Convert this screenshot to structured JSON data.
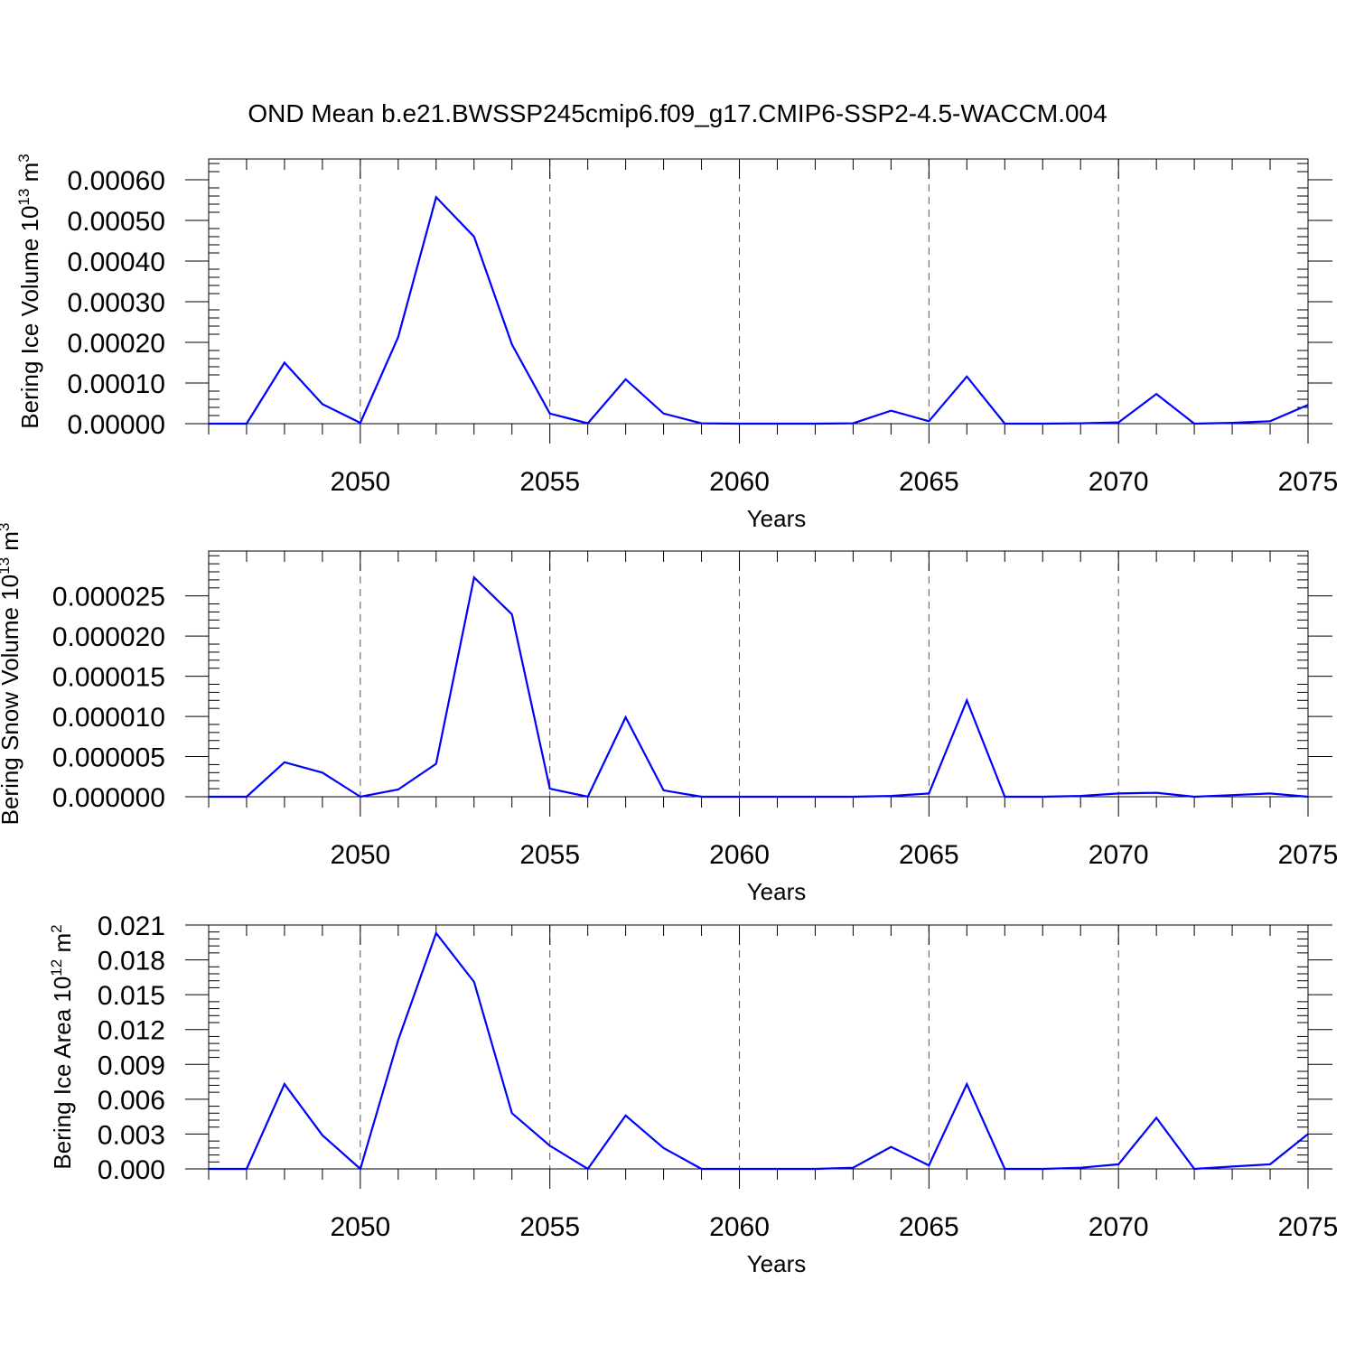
{
  "title": "OND Mean b.e21.BWSSP245cmip6.f09_g17.CMIP6-SSP2-4.5-WACCM.004",
  "colors": {
    "line": "#0000ff",
    "grid": "#555555"
  },
  "chart_data": [
    {
      "type": "line",
      "title": "OND Mean b.e21.BWSSP245cmip6.f09_g17.CMIP6-SSP2-4.5-WACCM.004",
      "xlabel": "Years",
      "ylabel_main": "Bering Ice Volume 10",
      "ylabel_exp": "13",
      "ylabel_unit": " m",
      "ylabel_unit_exp": "3",
      "xlim": [
        2046,
        2075
      ],
      "ylim": [
        0,
        0.0006
      ],
      "xticks": [
        2050,
        2055,
        2060,
        2065,
        2070,
        2075
      ],
      "xtick_labels": [
        "2050",
        "2055",
        "2060",
        "2065",
        "2070",
        "2075"
      ],
      "yticks": [
        0,
        0.0001,
        0.0002,
        0.0003,
        0.0004,
        0.0005,
        0.0006
      ],
      "ytick_labels": [
        "0.00000",
        "0.00010",
        "0.00020",
        "0.00030",
        "0.00040",
        "0.00050",
        "0.00060"
      ],
      "grid": "vertical dashed at major x ticks",
      "x": [
        2046,
        2047,
        2048,
        2049,
        2050,
        2051,
        2052,
        2053,
        2054,
        2055,
        2056,
        2057,
        2058,
        2059,
        2060,
        2061,
        2062,
        2063,
        2064,
        2065,
        2066,
        2067,
        2068,
        2069,
        2070,
        2071,
        2072,
        2073,
        2074,
        2075
      ],
      "y": [
        0,
        0,
        0.00015,
        4.8e-05,
        2e-06,
        0.000213,
        0.000557,
        0.00046,
        0.000195,
        2.5e-05,
        1e-06,
        0.000109,
        2.5e-05,
        1e-06,
        0,
        0,
        0,
        1e-06,
        3.2e-05,
        6e-06,
        0.000116,
        0,
        0,
        1e-06,
        3e-06,
        7.3e-05,
        0,
        2e-06,
        6e-06,
        4.6e-05
      ]
    },
    {
      "type": "line",
      "xlabel": "Years",
      "ylabel_main": "Bering Snow Volume 10",
      "ylabel_exp": "13",
      "ylabel_unit": " m",
      "ylabel_unit_exp": "3",
      "xlim": [
        2046,
        2075
      ],
      "ylim": [
        0,
        2.8e-05
      ],
      "xticks": [
        2050,
        2055,
        2060,
        2065,
        2070,
        2075
      ],
      "xtick_labels": [
        "2050",
        "2055",
        "2060",
        "2065",
        "2070",
        "2075"
      ],
      "yticks": [
        0,
        5e-06,
        1e-05,
        1.5e-05,
        2e-05,
        2.5e-05
      ],
      "ytick_labels": [
        "0.000000",
        "0.000005",
        "0.000010",
        "0.000015",
        "0.000020",
        "0.000025"
      ],
      "grid": "vertical dashed at major x ticks",
      "x": [
        2046,
        2047,
        2048,
        2049,
        2050,
        2051,
        2052,
        2053,
        2054,
        2055,
        2056,
        2057,
        2058,
        2059,
        2060,
        2061,
        2062,
        2063,
        2064,
        2065,
        2066,
        2067,
        2068,
        2069,
        2070,
        2071,
        2072,
        2073,
        2074,
        2075
      ],
      "y": [
        0,
        0,
        4.3e-06,
        3e-06,
        0,
        9e-07,
        4.1e-06,
        2.73e-05,
        2.27e-05,
        1e-06,
        0,
        9.9e-06,
        8e-07,
        0,
        0,
        0,
        0,
        0,
        1e-07,
        4e-07,
        1.2e-05,
        0,
        0,
        1e-07,
        4e-07,
        5e-07,
        0,
        2e-07,
        4e-07,
        0
      ]
    },
    {
      "type": "line",
      "xlabel": "Years",
      "ylabel_main": "Bering Ice Area 10",
      "ylabel_exp": "12",
      "ylabel_unit": " m",
      "ylabel_unit_exp": "2",
      "xlim": [
        2046,
        2075
      ],
      "ylim": [
        0,
        0.021
      ],
      "xticks": [
        2050,
        2055,
        2060,
        2065,
        2070,
        2075
      ],
      "xtick_labels": [
        "2050",
        "2055",
        "2060",
        "2065",
        "2070",
        "2075"
      ],
      "yticks": [
        0,
        0.003,
        0.006,
        0.009,
        0.012,
        0.015,
        0.018,
        0.021
      ],
      "ytick_labels": [
        "0.000",
        "0.003",
        "0.006",
        "0.009",
        "0.012",
        "0.015",
        "0.018",
        "0.021"
      ],
      "grid": "vertical dashed at major x ticks",
      "x": [
        2046,
        2047,
        2048,
        2049,
        2050,
        2051,
        2052,
        2053,
        2054,
        2055,
        2056,
        2057,
        2058,
        2059,
        2060,
        2061,
        2062,
        2063,
        2064,
        2065,
        2066,
        2067,
        2068,
        2069,
        2070,
        2071,
        2072,
        2073,
        2074,
        2075
      ],
      "y": [
        0,
        0,
        0.0073,
        0.0029,
        0,
        0.0111,
        0.0203,
        0.0161,
        0.0048,
        0.002,
        0,
        0.0046,
        0.0018,
        0,
        0,
        0,
        0,
        0.0001,
        0.0019,
        0.0003,
        0.0073,
        0,
        0,
        0.0001,
        0.0004,
        0.0044,
        0,
        0.0002,
        0.0004,
        0.003
      ]
    }
  ]
}
